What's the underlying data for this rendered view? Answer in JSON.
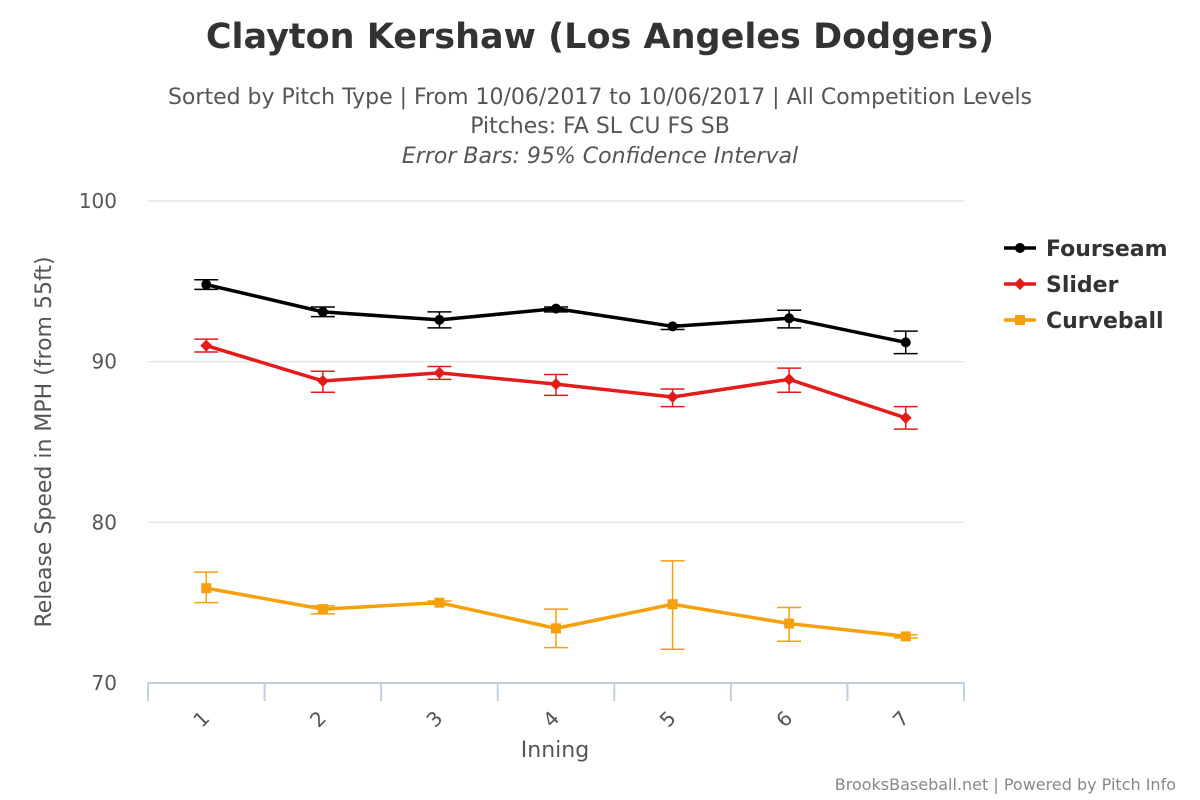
{
  "chart_data": {
    "type": "line",
    "title": "Clayton Kershaw (Los Angeles Dodgers)",
    "subtitle_lines": [
      "Sorted by Pitch Type | From 10/06/2017 to 10/06/2017 | All Competition Levels",
      "Pitches: FA SL CU FS SB"
    ],
    "subtitle_italic": "Error Bars: 95% Confidence Interval",
    "xlabel": "Inning",
    "ylabel": "Release Speed in MPH (from 55ft)",
    "categories": [
      "1",
      "2",
      "3",
      "4",
      "5",
      "6",
      "7"
    ],
    "ylim": [
      70,
      100
    ],
    "yticks": [
      "70",
      "80",
      "90",
      "100"
    ],
    "grid": true,
    "error_bars": true,
    "legend_position": "right",
    "series": [
      {
        "name": "Fourseam",
        "color": "#000000",
        "marker": "circle",
        "values": [
          94.8,
          93.1,
          92.6,
          93.3,
          92.2,
          92.7,
          91.2
        ],
        "error_low": [
          94.5,
          92.8,
          92.1,
          93.1,
          92.0,
          92.1,
          90.5
        ],
        "error_high": [
          95.1,
          93.4,
          93.1,
          93.4,
          92.3,
          93.2,
          91.9
        ]
      },
      {
        "name": "Slider",
        "color": "#e31b1b",
        "marker": "diamond",
        "values": [
          91.0,
          88.8,
          89.3,
          88.6,
          87.8,
          88.9,
          86.5
        ],
        "error_low": [
          90.6,
          88.1,
          88.9,
          87.9,
          87.2,
          88.1,
          85.8
        ],
        "error_high": [
          91.4,
          89.4,
          89.7,
          89.2,
          88.3,
          89.6,
          87.2
        ]
      },
      {
        "name": "Curveball",
        "color": "#f5a00c",
        "marker": "square",
        "values": [
          75.9,
          74.6,
          75.0,
          73.4,
          74.9,
          73.7,
          72.9
        ],
        "error_low": [
          75.0,
          74.3,
          74.9,
          72.2,
          72.1,
          72.6,
          72.8
        ],
        "error_high": [
          76.9,
          74.8,
          75.1,
          74.6,
          77.6,
          74.7,
          73.0
        ]
      }
    ]
  },
  "credits": "BrooksBaseball.net | Powered by Pitch Info"
}
